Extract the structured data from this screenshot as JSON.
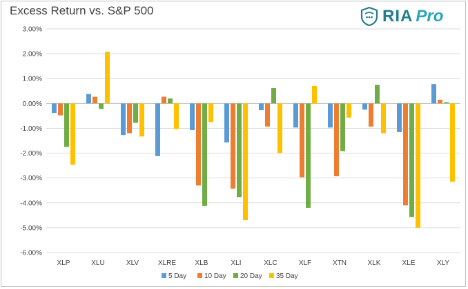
{
  "title": "Excess Return vs. S&P 500",
  "logo": {
    "brand": "RIA",
    "suffix": "Pro",
    "mark_icon": "shield-icon",
    "color": "#227d8c"
  },
  "chart_data": {
    "type": "bar",
    "categories": [
      "XLP",
      "XLU",
      "XLV",
      "XLRE",
      "XLB",
      "XLI",
      "XLC",
      "XLF",
      "XTN",
      "XLK",
      "XLE",
      "XLY"
    ],
    "series": [
      {
        "name": "5 Day",
        "color": "#5b9bd5",
        "values": [
          -0.38,
          0.38,
          -1.27,
          -2.12,
          -1.07,
          -1.57,
          -0.27,
          -0.97,
          -0.97,
          -0.25,
          -1.15,
          0.78
        ]
      },
      {
        "name": "10 Day",
        "color": "#ed7d31",
        "values": [
          -0.48,
          0.27,
          -1.2,
          0.27,
          -3.3,
          -3.43,
          -0.93,
          -2.97,
          -2.93,
          -0.93,
          -4.1,
          0.15
        ]
      },
      {
        "name": "20 Day",
        "color": "#70ad47",
        "values": [
          -1.75,
          -0.22,
          -0.78,
          0.2,
          -4.12,
          -3.77,
          0.62,
          -4.2,
          -1.92,
          0.75,
          -4.57,
          0.05
        ]
      },
      {
        "name": "35 Day",
        "color": "#ffc000",
        "values": [
          -2.47,
          2.08,
          -1.33,
          -1.03,
          -0.75,
          -4.7,
          -2.0,
          0.7,
          -0.57,
          -1.2,
          -5.0,
          -3.15
        ]
      }
    ],
    "yticks": [
      "3.00%",
      "2.00%",
      "1.00%",
      "0.00%",
      "-1.00%",
      "-2.00%",
      "-3.00%",
      "-4.00%",
      "-5.00%",
      "-6.00%"
    ],
    "ylim": [
      -6,
      3
    ],
    "grid": true,
    "legend_position": "bottom",
    "xlabel": "",
    "ylabel": ""
  }
}
